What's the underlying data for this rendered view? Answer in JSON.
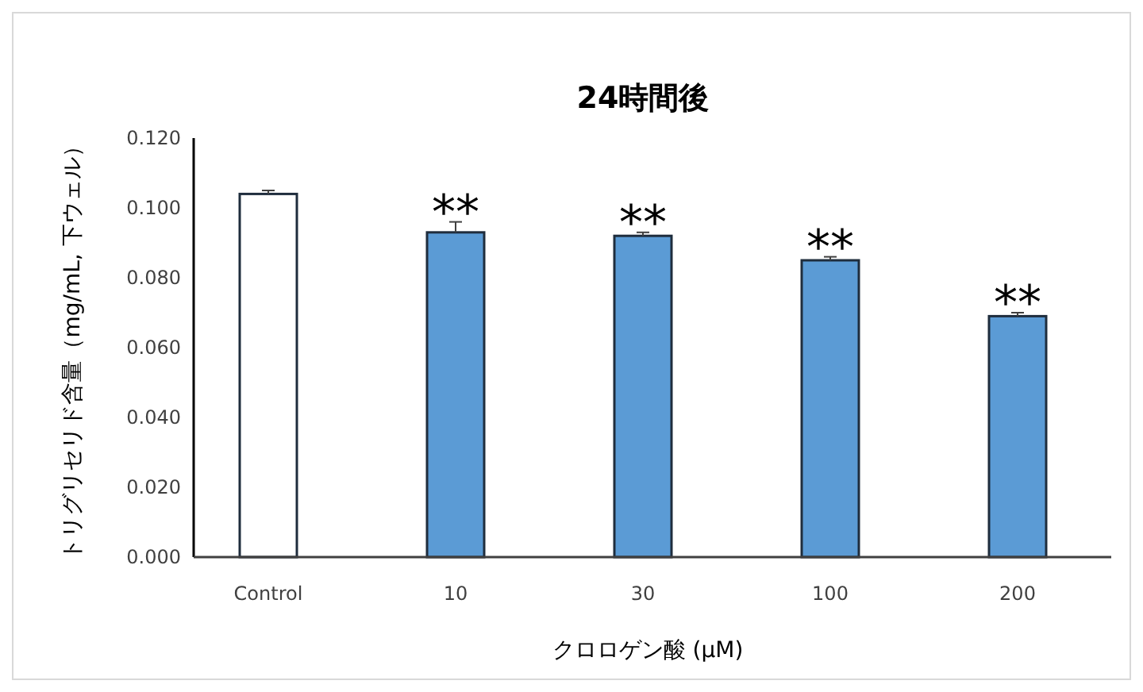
{
  "chart_data": {
    "type": "bar",
    "title": "24時間後",
    "xlabel": "クロロゲン酸 (μM)",
    "ylabel": "トリグリセリド含量（mg/mL, 下ウェル）",
    "categories": [
      "Control",
      "10",
      "30",
      "100",
      "200"
    ],
    "values": [
      0.104,
      0.093,
      0.092,
      0.085,
      0.069
    ],
    "errors": [
      0.001,
      0.003,
      0.001,
      0.001,
      0.001
    ],
    "colors": [
      "#ffffff",
      "#5b9bd5",
      "#5b9bd5",
      "#5b9bd5",
      "#5b9bd5"
    ],
    "ylim": [
      0,
      0.12
    ],
    "yticks": [
      {
        "value": 0,
        "label": "0.000"
      },
      {
        "value": 0.02,
        "label": "0.020"
      },
      {
        "value": 0.04,
        "label": "0.040"
      },
      {
        "value": 0.06,
        "label": "0.060"
      },
      {
        "value": 0.08,
        "label": "0.080"
      },
      {
        "value": 0.1,
        "label": "0.100"
      },
      {
        "value": 0.12,
        "label": "0.120"
      }
    ],
    "annotations": [
      {
        "text": "**",
        "x": "10",
        "y": 0.096
      },
      {
        "text": "**",
        "x": "30",
        "y": 0.093
      },
      {
        "text": "**",
        "x": "100",
        "y": 0.086
      },
      {
        "text": "**",
        "x": "200",
        "y": 0.07
      }
    ]
  }
}
